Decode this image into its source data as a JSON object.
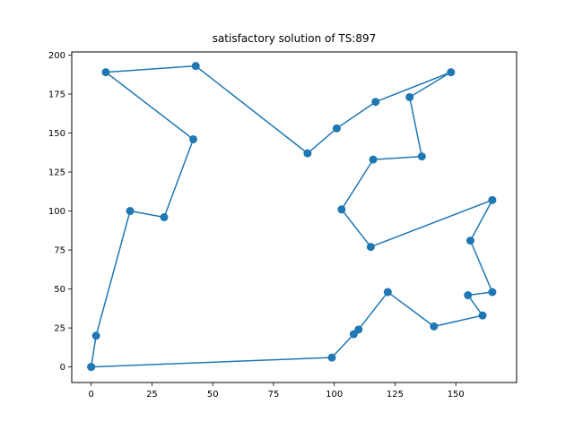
{
  "chart_data": {
    "type": "line",
    "title": "satisfactory solution of TS:897",
    "xlabel": "",
    "ylabel": "",
    "xlim": [
      -8,
      175
    ],
    "ylim": [
      -10,
      202
    ],
    "xticks": [
      0,
      25,
      50,
      75,
      100,
      125,
      150
    ],
    "yticks": [
      0,
      25,
      50,
      75,
      100,
      125,
      150,
      175,
      200
    ],
    "grid": false,
    "legend": "none",
    "colors": {
      "series": "#1f77b4"
    },
    "marker": "circle",
    "series": [
      {
        "x": [
          0,
          2,
          16,
          30,
          42,
          6,
          43,
          89,
          101,
          117,
          148,
          131,
          136,
          116,
          103,
          115,
          165,
          156,
          165,
          155,
          161,
          141,
          122,
          110,
          108,
          99,
          0
        ],
        "y": [
          0,
          20,
          100,
          96,
          146,
          189,
          193,
          137,
          153,
          170,
          189,
          173,
          135,
          133,
          101,
          77,
          107,
          81,
          48,
          46,
          33,
          26,
          48,
          24,
          21,
          6,
          0
        ]
      }
    ]
  }
}
